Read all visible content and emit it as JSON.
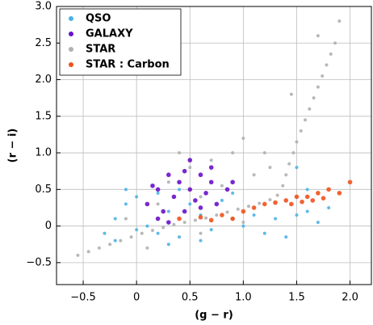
{
  "chart_data": {
    "type": "scatter",
    "xlabel": "(g − r)",
    "ylabel": "(r − i)",
    "xlim": [
      -0.75,
      2.2
    ],
    "ylim": [
      -0.8,
      3.0
    ],
    "xticks": [
      {
        "value": -0.5,
        "label": "−0.5"
      },
      0,
      0.5,
      {
        "value": 1.0,
        "label": "1.0"
      },
      1.5,
      {
        "value": 2.0,
        "label": "2.0"
      }
    ],
    "yticks": [
      {
        "value": -0.5,
        "label": "−0.5"
      },
      0,
      0.5,
      {
        "value": 1.0,
        "label": "1.0"
      },
      1.5,
      {
        "value": 2.0,
        "label": "2.0"
      },
      2.5,
      {
        "value": 3.0,
        "label": "3.0"
      }
    ],
    "grid": true,
    "legend": "upper left",
    "series": [
      {
        "name": "QSO",
        "color": "#4cb2e6",
        "x": [
          -0.3,
          -0.2,
          -0.1,
          0,
          0.1,
          0.2,
          0.3,
          0.4,
          0.5,
          0.6,
          0.7,
          0.8,
          0.9,
          1.0,
          1.1,
          1.2,
          -0.2,
          0.0,
          0.2,
          0.4,
          0.6,
          1.3,
          1.5,
          1.6,
          1.7,
          1.8,
          1.4,
          -0.1,
          0.3,
          0.9,
          1.5,
          1.6
        ],
        "y": [
          -0.1,
          0.1,
          0.3,
          0.4,
          0.0,
          -0.1,
          0.2,
          -0.15,
          0.3,
          0.15,
          -0.05,
          0.35,
          0.1,
          0.0,
          0.15,
          -0.1,
          -0.2,
          -0.05,
          0.45,
          0.5,
          -0.2,
          0.1,
          0.15,
          0.2,
          0.05,
          0.25,
          -0.15,
          0.5,
          -0.25,
          0.45,
          0.8,
          0.5
        ]
      },
      {
        "name": "GALAXY",
        "color": "#6a11c8",
        "x": [
          0.1,
          0.2,
          0.3,
          0.35,
          0.4,
          0.45,
          0.5,
          0.55,
          0.6,
          0.65,
          0.7,
          0.75,
          0.25,
          0.15,
          0.5,
          0.7,
          0.85,
          0.3,
          0.45,
          0.6,
          0.2,
          0.9
        ],
        "y": [
          0.3,
          0.5,
          0.7,
          0.4,
          0.6,
          0.2,
          0.5,
          0.35,
          0.7,
          0.45,
          0.6,
          0.3,
          0.2,
          0.55,
          0.9,
          0.8,
          0.5,
          0.05,
          0.75,
          0.25,
          0.1,
          0.6
        ]
      },
      {
        "name": "STAR",
        "color": "#b0b0b0",
        "x": [
          -0.55,
          -0.45,
          -0.35,
          -0.25,
          -0.15,
          -0.05,
          0.05,
          0.15,
          0.25,
          0.35,
          0.45,
          0.55,
          0.65,
          0.75,
          0.85,
          0.95,
          1.05,
          1.15,
          1.25,
          1.32,
          1.37,
          1.4,
          1.43,
          1.47,
          1.5,
          1.54,
          1.58,
          1.62,
          1.66,
          1.7,
          1.74,
          1.78,
          1.82,
          1.86,
          0.3,
          0.5,
          0.7,
          0.9,
          1.0,
          0.8,
          1.1,
          1.2,
          0.2,
          0.6,
          -0.1,
          0.4,
          1.25,
          1.9,
          1.45,
          1.7,
          0.1,
          0.6,
          1.0
        ],
        "y": [
          -0.4,
          -0.35,
          -0.3,
          -0.25,
          -0.2,
          -0.15,
          -0.1,
          -0.06,
          -0.02,
          0.02,
          0.05,
          0.08,
          0.11,
          0.15,
          0.19,
          0.23,
          0.27,
          0.31,
          0.36,
          0.42,
          0.55,
          0.7,
          0.85,
          1.0,
          1.15,
          1.3,
          1.45,
          1.6,
          1.75,
          1.9,
          2.05,
          2.2,
          2.35,
          2.5,
          0.6,
          0.8,
          0.9,
          1.0,
          1.2,
          0.55,
          0.7,
          1.0,
          0.3,
          0.4,
          0.1,
          1.0,
          0.8,
          2.8,
          1.8,
          2.6,
          -0.3,
          -0.1,
          0.05
        ]
      },
      {
        "name": "STAR : Carbon",
        "color": "#f0521c",
        "x": [
          0.4,
          0.6,
          0.8,
          0.9,
          1.0,
          1.1,
          1.2,
          1.3,
          1.4,
          1.5,
          1.55,
          1.6,
          1.7,
          1.75,
          1.8,
          1.9,
          2.0,
          1.45,
          1.65,
          0.7
        ],
        "y": [
          0.1,
          0.12,
          0.15,
          0.1,
          0.2,
          0.25,
          0.3,
          0.32,
          0.35,
          0.4,
          0.33,
          0.4,
          0.45,
          0.38,
          0.5,
          0.45,
          0.6,
          0.3,
          0.35,
          0.08
        ]
      }
    ]
  }
}
